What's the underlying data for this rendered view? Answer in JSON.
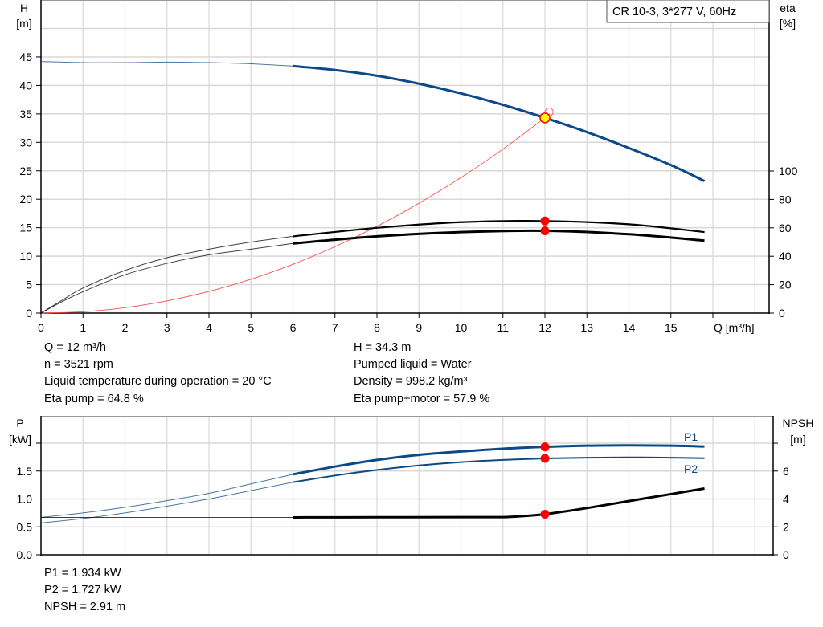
{
  "chart_data": [
    {
      "type": "line",
      "model_label": "CR 10-3, 3*277 V, 60Hz",
      "xlabel": "Q [m³/h]",
      "ylabel_left": [
        "H",
        "[m]"
      ],
      "ylabel_right": [
        "eta",
        "[%]"
      ],
      "xlim": [
        0,
        17
      ],
      "ylim_left": [
        0,
        50
      ],
      "ylim_right": [
        0,
        100
      ],
      "x_ticks": [
        "0",
        "1",
        "2",
        "3",
        "4",
        "5",
        "6",
        "7",
        "8",
        "9",
        "10",
        "11",
        "12",
        "13",
        "14",
        "15"
      ],
      "y_ticks_left": [
        "0",
        "5",
        "10",
        "15",
        "20",
        "25",
        "30",
        "35",
        "40",
        "45"
      ],
      "y_ticks_right": [
        "0",
        "20",
        "40",
        "60",
        "80",
        "100"
      ],
      "grid": true,
      "series": [
        {
          "key": "H",
          "axis": "left",
          "color": "#0b4a86",
          "thick_from": 6,
          "x": [
            0,
            1,
            2,
            3,
            4,
            5,
            6,
            7,
            8,
            9,
            10,
            11,
            12,
            13,
            14,
            15,
            15.8
          ],
          "y": [
            44.2,
            44.0,
            44.0,
            44.1,
            44.0,
            43.8,
            43.4,
            42.7,
            41.7,
            40.3,
            38.6,
            36.6,
            34.3,
            31.8,
            29.0,
            26.0,
            23.2
          ]
        },
        {
          "key": "eta_pump",
          "axis": "right",
          "color": "#000000",
          "thick_from": 6,
          "x": [
            0,
            0.5,
            1,
            2,
            3,
            4,
            5,
            6,
            8,
            10,
            12,
            14,
            15.8
          ],
          "y": [
            0,
            9,
            17.6,
            30,
            39,
            45,
            50,
            54,
            60,
            64,
            64.8,
            62.5,
            57
          ]
        },
        {
          "key": "eta_pump_motor",
          "axis": "right",
          "color": "#000000",
          "thick_from": 6,
          "x": [
            0,
            0.5,
            1,
            2,
            3,
            4,
            5,
            6,
            8,
            10,
            12,
            14,
            15.8
          ],
          "y": [
            0,
            8,
            15,
            27,
            35,
            41,
            45,
            49,
            54,
            57,
            57.9,
            55.5,
            51
          ]
        },
        {
          "key": "system_curve",
          "axis": "left",
          "color": "#ff5050",
          "x": [
            0,
            1,
            2,
            3,
            4,
            5,
            6,
            7,
            8,
            9,
            10,
            11,
            12,
            12.1
          ],
          "y": [
            0,
            0.24,
            0.95,
            2.14,
            3.81,
            5.95,
            8.58,
            11.67,
            15.24,
            19.3,
            23.8,
            28.8,
            34.3,
            34.9
          ]
        }
      ],
      "duty_point": {
        "q": 12,
        "h": 34.3,
        "eta_pump": 64.8,
        "eta_pump_motor": 57.9
      }
    },
    {
      "type": "line",
      "ylabel_left": [
        "P",
        "[kW]"
      ],
      "ylabel_right": [
        "NPSH",
        "[m]"
      ],
      "xlim": [
        0,
        17
      ],
      "ylim_left": [
        0,
        2.5
      ],
      "ylim_right": [
        0,
        10
      ],
      "y_ticks_left": [
        "0.0",
        "0.5",
        "1.0",
        "1.5"
      ],
      "y_ticks_right": [
        "0",
        "2",
        "4",
        "6"
      ],
      "grid": true,
      "series": [
        {
          "name": "P1",
          "axis": "left",
          "color": "#0b4a86",
          "thick_from": 6,
          "x": [
            0,
            1,
            2,
            3,
            4,
            5,
            6,
            7,
            8,
            9,
            10,
            11,
            12,
            13,
            14,
            15,
            15.8
          ],
          "y": [
            0.67,
            0.75,
            0.85,
            0.97,
            1.1,
            1.27,
            1.44,
            1.58,
            1.7,
            1.79,
            1.85,
            1.9,
            1.934,
            1.955,
            1.96,
            1.955,
            1.94
          ]
        },
        {
          "name": "P2",
          "axis": "left",
          "color": "#0b4a86",
          "thick_from": 6,
          "x": [
            0,
            1,
            2,
            3,
            4,
            5,
            6,
            7,
            8,
            9,
            10,
            11,
            12,
            13,
            14,
            15,
            15.8
          ],
          "y": [
            0.57,
            0.65,
            0.75,
            0.87,
            1.0,
            1.15,
            1.3,
            1.42,
            1.52,
            1.6,
            1.66,
            1.7,
            1.727,
            1.74,
            1.745,
            1.74,
            1.73
          ]
        },
        {
          "key": "NPSH",
          "axis": "right",
          "color": "#000000",
          "thick_from": 6,
          "x": [
            0,
            2,
            4,
            6,
            8,
            10,
            11,
            11.5,
            12,
            13,
            14,
            15,
            15.8
          ],
          "y": [
            2.68,
            2.68,
            2.68,
            2.68,
            2.69,
            2.7,
            2.7,
            2.78,
            2.91,
            3.35,
            3.85,
            4.35,
            4.75
          ]
        }
      ],
      "duty_point": {
        "q": 12,
        "p1": 1.934,
        "p2": 1.727,
        "npsh": 2.91
      }
    }
  ],
  "info": {
    "left": [
      "Q = 12 m³/h",
      "n = 3521 rpm",
      "Liquid temperature during operation = 20 °C",
      "Eta pump = 64.8 %"
    ],
    "right": [
      "H = 34.3 m",
      "Pumped liquid = Water",
      "Density = 998.2 kg/m³",
      "Eta pump+motor = 57.9 %"
    ],
    "bottom": [
      "P1 = 1.934 kW",
      "P2 = 1.727 kW",
      "NPSH = 2.91 m"
    ]
  },
  "colors": {
    "head": "#0b4a86",
    "system": "#ff5050",
    "marker": "#ff0000",
    "duty": "#ffff00",
    "grid": "#d8d8d8"
  }
}
